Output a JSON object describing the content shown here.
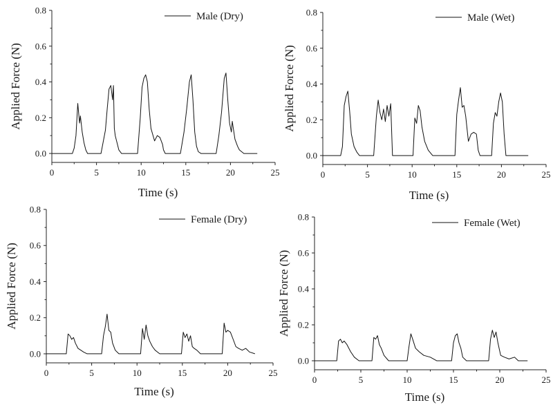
{
  "chart_data": [
    {
      "type": "line",
      "title": "",
      "xlabel": "Time (s)",
      "ylabel": "Applied Force (N)",
      "xlim": [
        0,
        25
      ],
      "ylim": [
        -0.05,
        0.8
      ],
      "xticks": [
        0,
        5,
        10,
        15,
        20,
        25
      ],
      "yticks": [
        0.0,
        0.2,
        0.4,
        0.6,
        0.8
      ],
      "xtick_labels": [
        "0",
        "5",
        "10",
        "15",
        "20",
        "25"
      ],
      "ytick_labels": [
        "0.0",
        "0.2",
        "0.4",
        "0.6",
        "0.8"
      ],
      "grid": false,
      "legend_position": "top-right",
      "series": [
        {
          "name": "Male (Dry)",
          "x": [
            0,
            2.3,
            2.5,
            2.7,
            2.9,
            3.1,
            3.2,
            3.4,
            3.6,
            3.8,
            4.0,
            4.3,
            5.5,
            6.0,
            6.2,
            6.4,
            6.6,
            6.8,
            6.9,
            7.0,
            7.1,
            7.3,
            7.5,
            7.8,
            8.2,
            9.6,
            9.9,
            10.1,
            10.3,
            10.5,
            10.7,
            10.9,
            11.1,
            11.5,
            11.8,
            12.1,
            12.4,
            12.5,
            12.7,
            14.4,
            14.8,
            15.1,
            15.4,
            15.6,
            15.8,
            16.0,
            16.2,
            16.4,
            16.7,
            18.4,
            18.7,
            19.0,
            19.3,
            19.5,
            19.7,
            19.9,
            20.1,
            20.2,
            20.5,
            20.8,
            21.0,
            21.5,
            23.0
          ],
          "y": [
            0.0,
            0.0,
            0.03,
            0.1,
            0.28,
            0.17,
            0.21,
            0.12,
            0.06,
            0.02,
            0.0,
            0.0,
            0.0,
            0.13,
            0.25,
            0.36,
            0.38,
            0.3,
            0.38,
            0.14,
            0.1,
            0.06,
            0.02,
            0.0,
            0.0,
            0.0,
            0.2,
            0.37,
            0.42,
            0.44,
            0.4,
            0.25,
            0.14,
            0.07,
            0.1,
            0.09,
            0.05,
            0.02,
            0.0,
            0.0,
            0.12,
            0.25,
            0.4,
            0.44,
            0.3,
            0.12,
            0.04,
            0.01,
            0.0,
            0.0,
            0.1,
            0.23,
            0.42,
            0.45,
            0.3,
            0.17,
            0.12,
            0.18,
            0.08,
            0.04,
            0.02,
            0.0,
            0.0
          ]
        },
        {
          "name": "Male (Wet)",
          "x": [
            0,
            2.0,
            2.2,
            2.4,
            2.6,
            2.8,
            3.0,
            3.2,
            3.5,
            3.8,
            4.1,
            5.7,
            6.0,
            6.2,
            6.4,
            6.6,
            6.8,
            7.0,
            7.2,
            7.4,
            7.6,
            7.8,
            10.1,
            10.3,
            10.5,
            10.7,
            10.9,
            11.1,
            11.4,
            11.8,
            12.3,
            14.8,
            15.0,
            15.2,
            15.4,
            15.6,
            15.8,
            16.0,
            16.3,
            16.6,
            16.9,
            17.2,
            17.4,
            17.6,
            18.9,
            19.1,
            19.3,
            19.5,
            19.7,
            19.9,
            20.1,
            20.3,
            20.5,
            23.0
          ],
          "y": [
            0.0,
            0.0,
            0.05,
            0.28,
            0.33,
            0.36,
            0.25,
            0.12,
            0.05,
            0.02,
            0.0,
            0.0,
            0.22,
            0.31,
            0.24,
            0.2,
            0.26,
            0.19,
            0.28,
            0.22,
            0.29,
            0.0,
            0.0,
            0.21,
            0.18,
            0.28,
            0.25,
            0.16,
            0.08,
            0.03,
            0.0,
            0.0,
            0.23,
            0.31,
            0.38,
            0.27,
            0.28,
            0.22,
            0.08,
            0.12,
            0.13,
            0.12,
            0.03,
            0.0,
            0.0,
            0.18,
            0.24,
            0.22,
            0.3,
            0.35,
            0.3,
            0.12,
            0.0,
            0.0
          ]
        }
      ]
    },
    {
      "type": "line",
      "title": "",
      "xlabel": "Time (s)",
      "ylabel": "Applied Force (N)",
      "xlim": [
        0,
        25
      ],
      "ylim": [
        -0.05,
        0.8
      ],
      "xticks": [
        0,
        5,
        10,
        15,
        20,
        25
      ],
      "yticks": [
        0.0,
        0.2,
        0.4,
        0.6,
        0.8
      ],
      "xtick_labels": [
        "0",
        "5",
        "10",
        "15",
        "20",
        "25"
      ],
      "ytick_labels": [
        "0.0",
        "0.2",
        "0.4",
        "0.6",
        "0.8"
      ],
      "grid": false,
      "legend_position": "top-right",
      "series": [
        {
          "name": "Female (Dry)",
          "x": [
            0,
            2.2,
            2.4,
            2.6,
            2.8,
            3.0,
            3.2,
            3.5,
            3.8,
            4.1,
            4.5,
            6.1,
            6.3,
            6.5,
            6.7,
            6.9,
            7.1,
            7.3,
            7.6,
            8.0,
            10.4,
            10.6,
            10.8,
            11.0,
            11.2,
            11.4,
            11.7,
            12.0,
            12.5,
            14.9,
            15.1,
            15.3,
            15.5,
            15.7,
            15.9,
            16.1,
            16.3,
            16.6,
            17.0,
            19.4,
            19.6,
            19.8,
            20.0,
            20.3,
            20.6,
            20.9,
            21.2,
            21.6,
            22.0,
            22.4,
            23.0
          ],
          "y": [
            0.0,
            0.0,
            0.11,
            0.1,
            0.08,
            0.09,
            0.06,
            0.03,
            0.02,
            0.01,
            0.0,
            0.0,
            0.1,
            0.15,
            0.22,
            0.13,
            0.12,
            0.06,
            0.02,
            0.0,
            0.0,
            0.14,
            0.08,
            0.16,
            0.1,
            0.07,
            0.04,
            0.02,
            0.0,
            0.0,
            0.12,
            0.09,
            0.11,
            0.07,
            0.1,
            0.04,
            0.03,
            0.02,
            0.0,
            0.0,
            0.17,
            0.12,
            0.13,
            0.12,
            0.08,
            0.04,
            0.03,
            0.02,
            0.03,
            0.01,
            0.0
          ]
        },
        {
          "name": "Female (Wet)",
          "x": [
            0,
            2.4,
            2.6,
            2.8,
            3.0,
            3.2,
            3.5,
            3.9,
            4.3,
            4.8,
            6.2,
            6.4,
            6.6,
            6.8,
            7.0,
            7.2,
            7.5,
            8.0,
            10.0,
            10.2,
            10.4,
            10.6,
            10.9,
            11.3,
            11.8,
            12.5,
            13.2,
            14.8,
            15.0,
            15.2,
            15.4,
            15.6,
            15.8,
            16.0,
            16.4,
            18.8,
            19.0,
            19.2,
            19.4,
            19.6,
            19.8,
            20.1,
            20.5,
            21.0,
            21.6,
            22.0,
            23.0
          ],
          "y": [
            0.0,
            0.0,
            0.11,
            0.12,
            0.1,
            0.11,
            0.09,
            0.05,
            0.02,
            0.0,
            0.0,
            0.13,
            0.12,
            0.14,
            0.09,
            0.07,
            0.03,
            0.0,
            0.0,
            0.08,
            0.15,
            0.12,
            0.07,
            0.05,
            0.03,
            0.02,
            0.0,
            0.0,
            0.1,
            0.14,
            0.15,
            0.1,
            0.07,
            0.02,
            0.0,
            0.0,
            0.12,
            0.17,
            0.13,
            0.16,
            0.1,
            0.03,
            0.02,
            0.01,
            0.02,
            0.0,
            0.0
          ]
        }
      ]
    }
  ]
}
